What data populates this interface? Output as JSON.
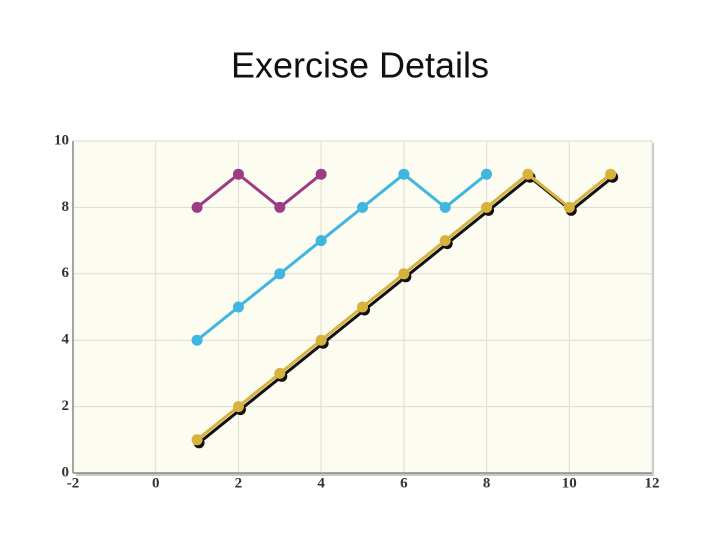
{
  "chart_data": {
    "type": "line",
    "title": "Exercise Details",
    "xlim": [
      -2,
      12
    ],
    "xticks": [
      -2,
      0,
      2,
      4,
      6,
      8,
      10,
      12
    ],
    "ylim": [
      0,
      10
    ],
    "yticks": [
      0,
      2,
      4,
      6,
      8,
      10
    ],
    "grid": true,
    "series": [
      {
        "color": "#9b3c86",
        "x": [
          1,
          2,
          3,
          4
        ],
        "values": [
          8,
          9,
          8,
          9
        ]
      },
      {
        "color": "#3fb6e0",
        "x": [
          1,
          2,
          3,
          4,
          5,
          6,
          7,
          8
        ],
        "values": [
          4,
          5,
          6,
          7,
          8,
          9,
          8,
          9
        ]
      },
      {
        "color": "#d6b33d",
        "x": [
          1,
          2,
          3,
          4,
          5,
          6,
          7,
          8,
          9,
          10,
          11
        ],
        "values": [
          1,
          2,
          3,
          4,
          5,
          6,
          7,
          8,
          9,
          8,
          9
        ],
        "shadow": true
      }
    ]
  }
}
